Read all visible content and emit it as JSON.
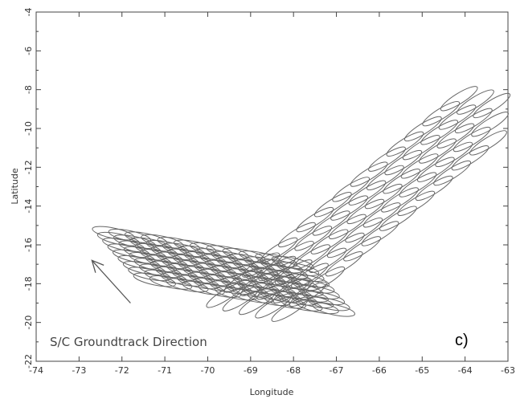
{
  "chart_data": {
    "type": "scatter",
    "title": "",
    "xlabel": "Longitude",
    "ylabel": "Latitude",
    "xlim": [
      -74,
      -63
    ],
    "ylim": [
      -22,
      -4
    ],
    "xticks": [
      "-74",
      "-73",
      "-72",
      "-71",
      "-70",
      "-69",
      "-68",
      "-67",
      "-66",
      "-65",
      "-64",
      "-63"
    ],
    "yticks": [
      "-4",
      "-6",
      "-8",
      "-10",
      "-12",
      "-14",
      "-16",
      "-18",
      "-20",
      "-22"
    ],
    "annotation": "S/C Groundtrack Direction",
    "panel_label": "c)",
    "arrow": {
      "from": [
        -71.8,
        -19.0
      ],
      "to": [
        -72.7,
        -16.8
      ]
    },
    "footprint_ellipse_size": {
      "semi_major_deg": 0.5,
      "semi_minor_deg": 0.12
    },
    "footprint_groups": [
      {
        "name": "",
        "description": "diagonal swath of elliptical footprints running to the northeast",
        "angle_deg": 32,
        "rows": 5,
        "cols": 14,
        "origin": [
          -69.6,
          -18.6
        ],
        "along_step": [
          0.42,
          0.78
        ],
        "cross_step": [
          0.38,
          -0.18
        ]
      },
      {
        "name": "",
        "description": "densely overlapping set of elongated footprints along the groundtrack direction",
        "angle_deg": -12,
        "rows": 9,
        "cols": 12,
        "origin": [
          -72.2,
          -15.4
        ],
        "along_step": [
          0.38,
          -0.14
        ],
        "cross_step": [
          0.12,
          -0.3
        ]
      }
    ]
  }
}
